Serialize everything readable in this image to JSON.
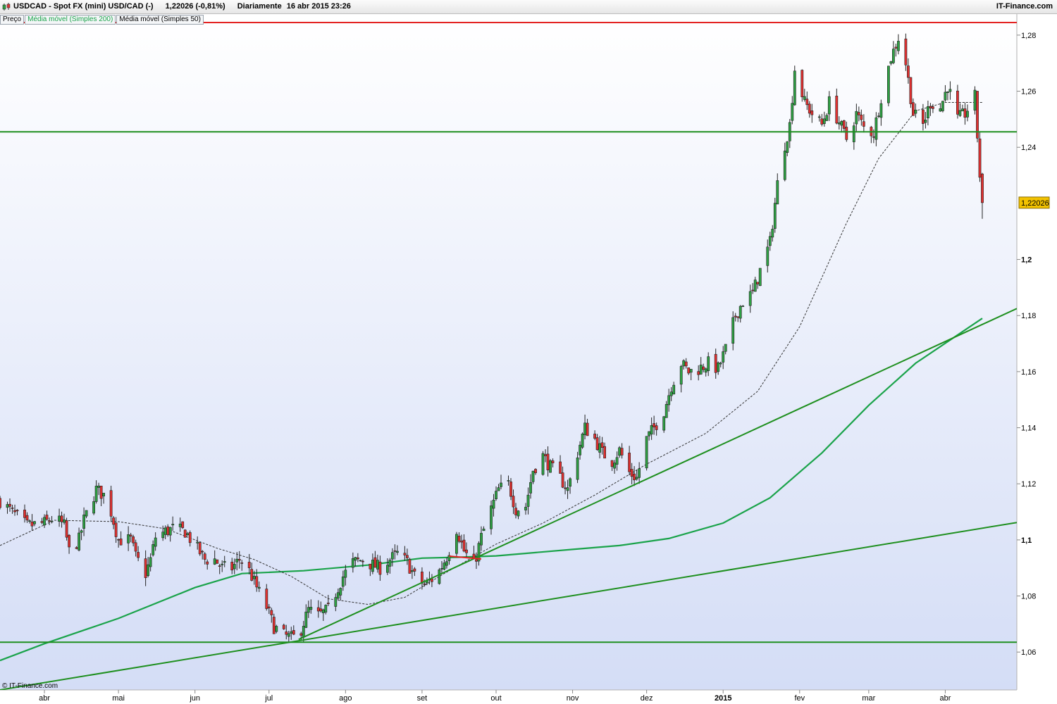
{
  "header": {
    "symbol": "USDCAD - Spot FX (mini) USD/CAD (-)",
    "quote": "1,22026 (-0,81%)",
    "period": "Diariamente",
    "datetime": "16 abr 2015 23:26",
    "brand": "IT-Finance.com",
    "icon": "candlestick-icon"
  },
  "legend": [
    {
      "label": "Preço",
      "color": "#000000"
    },
    {
      "label": "Média móvel (Simples 200)",
      "color": "#1aa34a"
    },
    {
      "label": "Média móvel (Simples 50)",
      "color": "#000000"
    }
  ],
  "copyright": "© IT-Finance.com",
  "chart_data": {
    "type": "candlestick",
    "symbol": "USD/CAD",
    "last_price": 1.22026,
    "last_price_label": "1,22026",
    "y_range": [
      1.0465,
      1.2875
    ],
    "y_ticks": [
      {
        "value": 1.28,
        "label": "1,28",
        "bold": false
      },
      {
        "value": 1.26,
        "label": "1,26",
        "bold": false
      },
      {
        "value": 1.24,
        "label": "1,24",
        "bold": false
      },
      {
        "value": 1.2,
        "label": "1,2",
        "bold": true
      },
      {
        "value": 1.18,
        "label": "1,18",
        "bold": false
      },
      {
        "value": 1.16,
        "label": "1,16",
        "bold": false
      },
      {
        "value": 1.14,
        "label": "1,14",
        "bold": false
      },
      {
        "value": 1.12,
        "label": "1,12",
        "bold": false
      },
      {
        "value": 1.1,
        "label": "1,1",
        "bold": true
      },
      {
        "value": 1.08,
        "label": "1,08",
        "bold": false
      },
      {
        "value": 1.06,
        "label": "1,06",
        "bold": false
      }
    ],
    "x_range": [
      "2014-03-14",
      "2015-04-30"
    ],
    "x_ticks": [
      {
        "date": "2014-04-01",
        "label": "abr",
        "bold": false
      },
      {
        "date": "2014-05-01",
        "label": "mai",
        "bold": false
      },
      {
        "date": "2014-06-01",
        "label": "jun",
        "bold": false
      },
      {
        "date": "2014-07-01",
        "label": "jul",
        "bold": false
      },
      {
        "date": "2014-08-01",
        "label": "ago",
        "bold": false
      },
      {
        "date": "2014-09-01",
        "label": "set",
        "bold": false
      },
      {
        "date": "2014-10-01",
        "label": "out",
        "bold": false
      },
      {
        "date": "2014-11-01",
        "label": "nov",
        "bold": false
      },
      {
        "date": "2014-12-01",
        "label": "dez",
        "bold": false
      },
      {
        "date": "2015-01-01",
        "label": "2015",
        "bold": true
      },
      {
        "date": "2015-02-01",
        "label": "fev",
        "bold": false
      },
      {
        "date": "2015-03-01",
        "label": "mar",
        "bold": false
      },
      {
        "date": "2015-04-01",
        "label": "abr",
        "bold": false
      }
    ],
    "price_path": [
      [
        "2014-03-14",
        1.114
      ],
      [
        "2014-03-20",
        1.109
      ],
      [
        "2014-03-25",
        1.105
      ],
      [
        "2014-04-01",
        1.106
      ],
      [
        "2014-04-05",
        1.108
      ],
      [
        "2014-04-09",
        1.105
      ],
      [
        "2014-04-11",
        1.096
      ],
      [
        "2014-04-15",
        1.1
      ],
      [
        "2014-04-17",
        1.107
      ],
      [
        "2014-04-22",
        1.118
      ],
      [
        "2014-04-25",
        1.116
      ],
      [
        "2014-04-28",
        1.11
      ],
      [
        "2014-05-01",
        1.1
      ],
      [
        "2014-05-06",
        1.1
      ],
      [
        "2014-05-08",
        1.094
      ],
      [
        "2014-05-12",
        1.088
      ],
      [
        "2014-05-14",
        1.093
      ],
      [
        "2014-05-16",
        1.101
      ],
      [
        "2014-05-20",
        1.103
      ],
      [
        "2014-05-23",
        1.104
      ],
      [
        "2014-05-28",
        1.103
      ],
      [
        "2014-06-01",
        1.098
      ],
      [
        "2014-06-05",
        1.093
      ],
      [
        "2014-06-09",
        1.093
      ],
      [
        "2014-06-12",
        1.09
      ],
      [
        "2014-06-16",
        1.09
      ],
      [
        "2014-06-19",
        1.093
      ],
      [
        "2014-06-22",
        1.091
      ],
      [
        "2014-06-26",
        1.083
      ],
      [
        "2014-06-30",
        1.076
      ],
      [
        "2014-07-03",
        1.069
      ],
      [
        "2014-07-07",
        1.066
      ],
      [
        "2014-07-10",
        1.065
      ],
      [
        "2014-07-13",
        1.066
      ],
      [
        "2014-07-17",
        1.075
      ],
      [
        "2014-07-21",
        1.073
      ],
      [
        "2014-07-25",
        1.075
      ],
      [
        "2014-07-28",
        1.081
      ],
      [
        "2014-07-31",
        1.087
      ],
      [
        "2014-08-04",
        1.092
      ],
      [
        "2014-08-08",
        1.093
      ],
      [
        "2014-08-12",
        1.091
      ],
      [
        "2014-08-15",
        1.09
      ],
      [
        "2014-08-19",
        1.093
      ],
      [
        "2014-08-22",
        1.095
      ],
      [
        "2014-08-26",
        1.092
      ],
      [
        "2014-08-29",
        1.087
      ],
      [
        "2014-09-02",
        1.084
      ],
      [
        "2014-09-05",
        1.086
      ],
      [
        "2014-09-08",
        1.089
      ],
      [
        "2014-09-11",
        1.094
      ],
      [
        "2014-09-15",
        1.104
      ],
      [
        "2014-09-18",
        1.096
      ],
      [
        "2014-09-22",
        1.091
      ],
      [
        "2014-09-25",
        1.101
      ],
      [
        "2014-09-29",
        1.111
      ],
      [
        "2014-10-02",
        1.118
      ],
      [
        "2014-10-06",
        1.12
      ],
      [
        "2014-10-09",
        1.111
      ],
      [
        "2014-10-13",
        1.112
      ],
      [
        "2014-10-16",
        1.125
      ],
      [
        "2014-10-20",
        1.13
      ],
      [
        "2014-10-23",
        1.126
      ],
      [
        "2014-10-27",
        1.122
      ],
      [
        "2014-10-30",
        1.118
      ],
      [
        "2014-11-03",
        1.131
      ],
      [
        "2014-11-06",
        1.14
      ],
      [
        "2014-11-10",
        1.136
      ],
      [
        "2014-11-13",
        1.131
      ],
      [
        "2014-11-17",
        1.128
      ],
      [
        "2014-11-20",
        1.132
      ],
      [
        "2014-11-24",
        1.124
      ],
      [
        "2014-11-27",
        1.122
      ],
      [
        "2014-12-01",
        1.136
      ],
      [
        "2014-12-04",
        1.14
      ],
      [
        "2014-12-08",
        1.146
      ],
      [
        "2014-12-11",
        1.155
      ],
      [
        "2014-12-15",
        1.163
      ],
      [
        "2014-12-18",
        1.16
      ],
      [
        "2014-12-22",
        1.161
      ],
      [
        "2014-12-26",
        1.163
      ],
      [
        "2014-12-30",
        1.161
      ],
      [
        "2015-01-02",
        1.168
      ],
      [
        "2015-01-06",
        1.18
      ],
      [
        "2015-01-09",
        1.185
      ],
      [
        "2015-01-13",
        1.188
      ],
      [
        "2015-01-16",
        1.196
      ],
      [
        "2015-01-20",
        1.206
      ],
      [
        "2015-01-23",
        1.227
      ],
      [
        "2015-01-26",
        1.241
      ],
      [
        "2015-01-28",
        1.248
      ],
      [
        "2015-01-30",
        1.268
      ],
      [
        "2015-02-03",
        1.256
      ],
      [
        "2015-02-06",
        1.252
      ],
      [
        "2015-02-10",
        1.248
      ],
      [
        "2015-02-13",
        1.256
      ],
      [
        "2015-02-17",
        1.249
      ],
      [
        "2015-02-20",
        1.243
      ],
      [
        "2015-02-24",
        1.252
      ],
      [
        "2015-02-27",
        1.247
      ],
      [
        "2015-03-03",
        1.245
      ],
      [
        "2015-03-06",
        1.258
      ],
      [
        "2015-03-10",
        1.272
      ],
      [
        "2015-03-13",
        1.279
      ],
      [
        "2015-03-16",
        1.27
      ],
      [
        "2015-03-19",
        1.252
      ],
      [
        "2015-03-23",
        1.248
      ],
      [
        "2015-03-26",
        1.256
      ],
      [
        "2015-03-30",
        1.254
      ],
      [
        "2015-04-02",
        1.262
      ],
      [
        "2015-04-06",
        1.25
      ],
      [
        "2015-04-09",
        1.252
      ],
      [
        "2015-04-13",
        1.258
      ],
      [
        "2015-04-14",
        1.244
      ],
      [
        "2015-04-15",
        1.23
      ],
      [
        "2015-04-16",
        1.22
      ]
    ],
    "sma200": [
      [
        "2014-03-14",
        1.057
      ],
      [
        "2014-04-01",
        1.063
      ],
      [
        "2014-05-01",
        1.072
      ],
      [
        "2014-06-01",
        1.083
      ],
      [
        "2014-06-20",
        1.088
      ],
      [
        "2014-07-15",
        1.089
      ],
      [
        "2014-08-10",
        1.091
      ],
      [
        "2014-09-01",
        1.0935
      ],
      [
        "2014-09-15",
        1.0938
      ],
      [
        "2014-10-01",
        1.0943
      ],
      [
        "2014-11-01",
        1.0966
      ],
      [
        "2014-11-20",
        1.098
      ],
      [
        "2014-12-10",
        1.1005
      ],
      [
        "2015-01-01",
        1.106
      ],
      [
        "2015-01-20",
        1.115
      ],
      [
        "2015-02-10",
        1.131
      ],
      [
        "2015-03-01",
        1.148
      ],
      [
        "2015-03-20",
        1.163
      ],
      [
        "2015-04-16",
        1.179
      ]
    ],
    "sma50": [
      [
        "2014-03-14",
        1.098
      ],
      [
        "2014-04-05",
        1.107
      ],
      [
        "2014-05-01",
        1.1065
      ],
      [
        "2014-05-20",
        1.104
      ],
      [
        "2014-06-10",
        1.097
      ],
      [
        "2014-06-25",
        1.093
      ],
      [
        "2014-07-10",
        1.087
      ],
      [
        "2014-07-25",
        1.079
      ],
      [
        "2014-08-10",
        1.077
      ],
      [
        "2014-08-25",
        1.0795
      ],
      [
        "2014-09-10",
        1.088
      ],
      [
        "2014-10-01",
        1.0985
      ],
      [
        "2014-10-20",
        1.106
      ],
      [
        "2014-11-10",
        1.116
      ],
      [
        "2014-12-01",
        1.127
      ],
      [
        "2014-12-25",
        1.138
      ],
      [
        "2015-01-15",
        1.153
      ],
      [
        "2015-02-01",
        1.176
      ],
      [
        "2015-02-20",
        1.213
      ],
      [
        "2015-03-05",
        1.236
      ],
      [
        "2015-03-20",
        1.253
      ],
      [
        "2015-04-01",
        1.256
      ],
      [
        "2015-04-16",
        1.256
      ]
    ],
    "horizontal_lines": [
      {
        "value": 1.2845,
        "color": "#e32222"
      },
      {
        "value": 1.2455,
        "color": "#1e8f1e"
      },
      {
        "value": 1.0635,
        "color": "#1e8f1e"
      }
    ],
    "trendlines": [
      {
        "from": [
          "2014-03-14",
          1.0465
        ],
        "to": [
          "2015-04-30",
          1.1062
        ],
        "color": "#1e8f1e"
      },
      {
        "from": [
          "2014-07-13",
          1.0645
        ],
        "to": [
          "2015-04-30",
          1.1825
        ],
        "color": "#1e8f1e"
      }
    ],
    "segments": [
      {
        "from": [
          "2014-09-12",
          1.0942
        ],
        "to": [
          "2014-09-25",
          1.0932
        ],
        "color": "#e32222"
      }
    ]
  }
}
